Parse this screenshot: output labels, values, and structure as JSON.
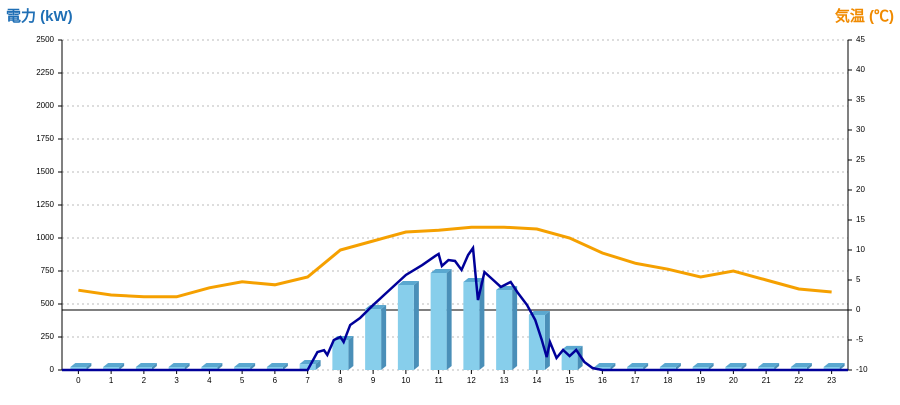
{
  "chart_data": {
    "type": "bar",
    "y_title": "電力 (kW)",
    "y2_title": "気温 (℃)",
    "categories": [
      "0",
      "1",
      "2",
      "3",
      "4",
      "5",
      "6",
      "7",
      "8",
      "9",
      "10",
      "11",
      "12",
      "13",
      "14",
      "15",
      "16",
      "17",
      "18",
      "19",
      "20",
      "21",
      "22",
      "23"
    ],
    "series": [
      {
        "type": "bar",
        "color": "#87ceeb",
        "values": [
          0,
          0,
          0,
          0,
          0,
          0,
          0,
          45,
          227,
          462,
          644,
          735,
          667,
          606,
          417,
          152,
          0,
          0,
          0,
          0,
          0,
          0,
          0,
          0
        ]
      },
      {
        "type": "line",
        "axis": "y2",
        "color": "#f5a000",
        "values": [
          3.3,
          2.5,
          2.2,
          2.2,
          3.7,
          4.7,
          4.2,
          5.5,
          10,
          11.5,
          13,
          13.3,
          13.8,
          13.8,
          13.5,
          12,
          9.5,
          7.8,
          6.8,
          5.5,
          6.5,
          5,
          3.5,
          3
        ]
      },
      {
        "type": "line",
        "color": "#000099",
        "x": [
          -0.5,
          7.0,
          7.3,
          7.5,
          7.6,
          7.8,
          8.0,
          8.1,
          8.3,
          8.6,
          9.0,
          9.5,
          10.0,
          10.5,
          10.9,
          11.0,
          11.1,
          11.3,
          11.5,
          11.7,
          11.9,
          12.05,
          12.2,
          12.4,
          12.6,
          12.9,
          13.2,
          13.4,
          13.7,
          13.95,
          14.15,
          14.3,
          14.4,
          14.6,
          14.8,
          15.0,
          15.2,
          15.45,
          15.7,
          16.0,
          23.5
        ],
        "values": [
          0,
          0,
          136,
          150,
          114,
          227,
          250,
          212,
          341,
          394,
          492,
          606,
          720,
          795,
          864,
          879,
          788,
          833,
          826,
          758,
          871,
          924,
          530,
          742,
          697,
          629,
          667,
          591,
          492,
          379,
          227,
          98,
          212,
          91,
          152,
          106,
          152,
          61,
          15,
          0,
          0
        ]
      }
    ],
    "ylim": [
      0,
      2500
    ],
    "yticks": [
      0,
      250,
      500,
      750,
      1000,
      1250,
      1500,
      1750,
      2000,
      2250,
      2500
    ],
    "y2lim": [
      -10,
      45
    ],
    "y2ticks": [
      -10,
      -5,
      0,
      5,
      10,
      15,
      20,
      25,
      30,
      35,
      40,
      45
    ],
    "grid": true
  }
}
